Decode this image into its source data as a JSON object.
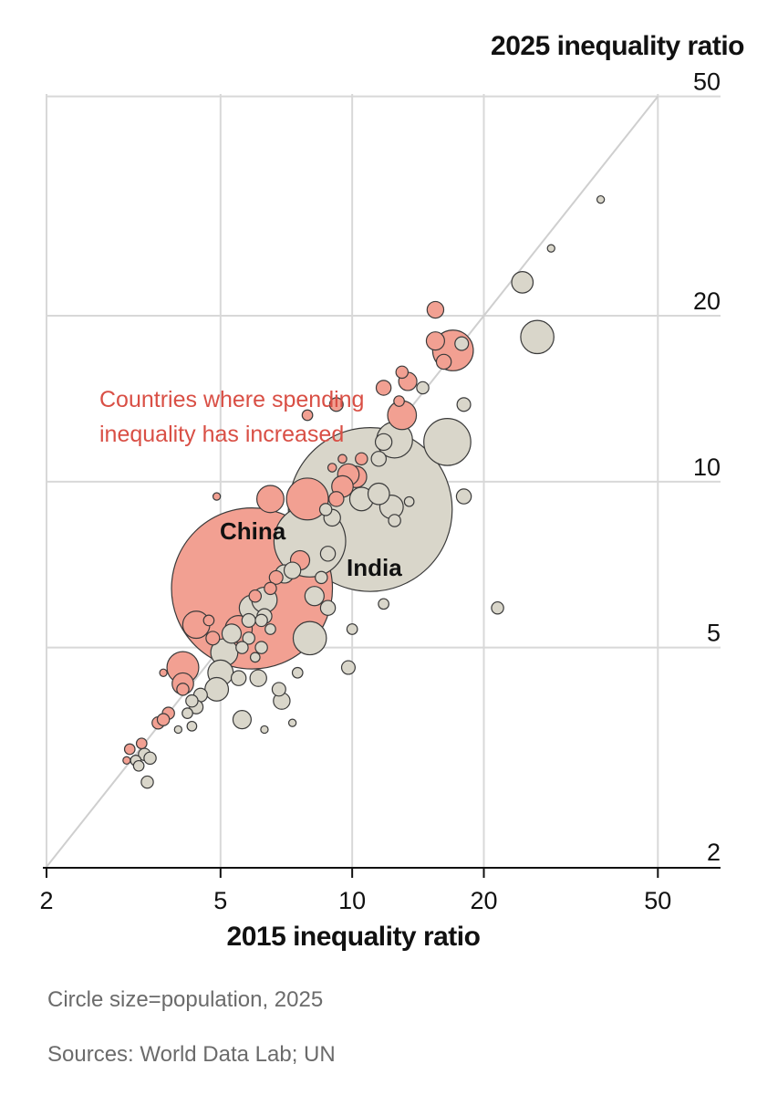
{
  "chart_data": {
    "type": "scatter",
    "xlabel": "2015 inequality ratio",
    "ylabel": "2025 inequality ratio",
    "x_scale": "log",
    "y_scale": "log",
    "xlim": [
      2,
      60
    ],
    "ylim": [
      2,
      50
    ],
    "x_ticks": [
      2,
      5,
      10,
      20,
      50
    ],
    "y_ticks": [
      2,
      5,
      10,
      20,
      50
    ],
    "grid": true,
    "reference_line": "y = x",
    "size_encoding": "population, 2025",
    "colors": {
      "increased": "#f2a092",
      "decreased": "#d9d6ca",
      "stroke": "#3a3a3a",
      "annotation": "#d94f45",
      "grid": "#d8d8d8",
      "diagonal": "#cfcfcf"
    },
    "annotations": {
      "increased_note": [
        "Countries where spending",
        "inequality has increased"
      ],
      "china": "China",
      "india": "India"
    },
    "points": [
      {
        "x": 5.9,
        "y": 6.4,
        "size": 1410,
        "group": "increased",
        "label": "China"
      },
      {
        "x": 11.0,
        "y": 8.9,
        "size": 1460,
        "group": "decreased",
        "label": "India"
      },
      {
        "x": 8.0,
        "y": 7.8,
        "size": 280,
        "group": "decreased"
      },
      {
        "x": 7.9,
        "y": 9.3,
        "size": 95,
        "group": "increased"
      },
      {
        "x": 6.5,
        "y": 9.3,
        "size": 40,
        "group": "increased"
      },
      {
        "x": 16.5,
        "y": 11.8,
        "size": 120,
        "group": "decreased"
      },
      {
        "x": 12.5,
        "y": 11.9,
        "size": 70,
        "group": "decreased"
      },
      {
        "x": 17.0,
        "y": 17.3,
        "size": 90,
        "group": "increased"
      },
      {
        "x": 26.5,
        "y": 18.3,
        "size": 60,
        "group": "decreased"
      },
      {
        "x": 13.0,
        "y": 13.2,
        "size": 45,
        "group": "increased"
      },
      {
        "x": 10.2,
        "y": 10.2,
        "size": 25,
        "group": "increased"
      },
      {
        "x": 12.3,
        "y": 9.0,
        "size": 30,
        "group": "decreased"
      },
      {
        "x": 8.0,
        "y": 5.2,
        "size": 60,
        "group": "decreased"
      },
      {
        "x": 5.5,
        "y": 5.4,
        "size": 40,
        "group": "increased"
      },
      {
        "x": 4.4,
        "y": 5.5,
        "size": 40,
        "group": "increased"
      },
      {
        "x": 4.1,
        "y": 4.6,
        "size": 55,
        "group": "increased"
      },
      {
        "x": 4.1,
        "y": 4.3,
        "size": 25,
        "group": "increased"
      },
      {
        "x": 5.1,
        "y": 4.9,
        "size": 40,
        "group": "decreased"
      },
      {
        "x": 5.9,
        "y": 5.9,
        "size": 35,
        "group": "decreased"
      },
      {
        "x": 4.9,
        "y": 4.2,
        "size": 30,
        "group": "decreased"
      },
      {
        "x": 5.0,
        "y": 4.5,
        "size": 35,
        "group": "decreased"
      },
      {
        "x": 24.5,
        "y": 23.0,
        "size": 25,
        "group": "decreased"
      },
      {
        "x": 15.5,
        "y": 20.5,
        "size": 15,
        "group": "increased"
      },
      {
        "x": 15.5,
        "y": 18.0,
        "size": 18,
        "group": "increased"
      },
      {
        "x": 16.2,
        "y": 16.5,
        "size": 12,
        "group": "increased"
      },
      {
        "x": 13.4,
        "y": 15.2,
        "size": 18,
        "group": "increased"
      },
      {
        "x": 11.8,
        "y": 14.8,
        "size": 12,
        "group": "increased"
      },
      {
        "x": 17.8,
        "y": 17.8,
        "size": 10,
        "group": "decreased"
      },
      {
        "x": 18.0,
        "y": 13.8,
        "size": 10,
        "group": "decreased"
      },
      {
        "x": 18.0,
        "y": 9.4,
        "size": 12,
        "group": "decreased"
      },
      {
        "x": 21.5,
        "y": 5.9,
        "size": 8,
        "group": "decreased"
      },
      {
        "x": 28.5,
        "y": 26.5,
        "size": 3,
        "group": "decreased"
      },
      {
        "x": 37.0,
        "y": 32.5,
        "size": 3,
        "group": "decreased"
      },
      {
        "x": 11.8,
        "y": 11.8,
        "size": 15,
        "group": "decreased"
      },
      {
        "x": 11.5,
        "y": 11.0,
        "size": 12,
        "group": "decreased"
      },
      {
        "x": 10.5,
        "y": 11.0,
        "size": 8,
        "group": "increased"
      },
      {
        "x": 12.8,
        "y": 14.0,
        "size": 6,
        "group": "increased"
      },
      {
        "x": 13.0,
        "y": 15.8,
        "size": 8,
        "group": "increased"
      },
      {
        "x": 14.5,
        "y": 14.8,
        "size": 8,
        "group": "decreased"
      },
      {
        "x": 9.2,
        "y": 13.8,
        "size": 10,
        "group": "increased"
      },
      {
        "x": 7.9,
        "y": 13.2,
        "size": 6,
        "group": "increased"
      },
      {
        "x": 9.8,
        "y": 10.3,
        "size": 25,
        "group": "increased"
      },
      {
        "x": 9.5,
        "y": 9.8,
        "size": 25,
        "group": "increased"
      },
      {
        "x": 9.2,
        "y": 9.3,
        "size": 12,
        "group": "increased"
      },
      {
        "x": 10.5,
        "y": 9.3,
        "size": 30,
        "group": "decreased"
      },
      {
        "x": 11.5,
        "y": 9.5,
        "size": 25,
        "group": "decreased"
      },
      {
        "x": 9.0,
        "y": 10.6,
        "size": 4,
        "group": "increased"
      },
      {
        "x": 9.5,
        "y": 11.0,
        "size": 4,
        "group": "increased"
      },
      {
        "x": 9.0,
        "y": 8.6,
        "size": 15,
        "group": "decreased"
      },
      {
        "x": 8.7,
        "y": 8.9,
        "size": 8,
        "group": "decreased"
      },
      {
        "x": 12.5,
        "y": 8.5,
        "size": 8,
        "group": "decreased"
      },
      {
        "x": 13.5,
        "y": 9.2,
        "size": 5,
        "group": "decreased"
      },
      {
        "x": 7.6,
        "y": 7.2,
        "size": 20,
        "group": "increased"
      },
      {
        "x": 7.3,
        "y": 6.9,
        "size": 15,
        "group": "decreased"
      },
      {
        "x": 7.0,
        "y": 6.8,
        "size": 18,
        "group": "decreased"
      },
      {
        "x": 8.5,
        "y": 6.7,
        "size": 8,
        "group": "decreased"
      },
      {
        "x": 8.8,
        "y": 7.4,
        "size": 12,
        "group": "decreased"
      },
      {
        "x": 6.7,
        "y": 6.7,
        "size": 10,
        "group": "increased"
      },
      {
        "x": 6.5,
        "y": 6.4,
        "size": 8,
        "group": "increased"
      },
      {
        "x": 8.2,
        "y": 6.2,
        "size": 20,
        "group": "decreased"
      },
      {
        "x": 8.8,
        "y": 5.9,
        "size": 12,
        "group": "decreased"
      },
      {
        "x": 6.3,
        "y": 6.1,
        "size": 35,
        "group": "decreased"
      },
      {
        "x": 6.3,
        "y": 5.7,
        "size": 12,
        "group": "decreased"
      },
      {
        "x": 6.0,
        "y": 6.2,
        "size": 8,
        "group": "increased"
      },
      {
        "x": 6.2,
        "y": 5.6,
        "size": 8,
        "group": "decreased"
      },
      {
        "x": 6.5,
        "y": 5.4,
        "size": 6,
        "group": "decreased"
      },
      {
        "x": 5.8,
        "y": 5.6,
        "size": 10,
        "group": "decreased"
      },
      {
        "x": 5.8,
        "y": 5.2,
        "size": 8,
        "group": "decreased"
      },
      {
        "x": 5.6,
        "y": 5.0,
        "size": 8,
        "group": "decreased"
      },
      {
        "x": 6.2,
        "y": 5.0,
        "size": 8,
        "group": "decreased"
      },
      {
        "x": 6.0,
        "y": 4.8,
        "size": 5,
        "group": "decreased"
      },
      {
        "x": 5.3,
        "y": 5.3,
        "size": 20,
        "group": "decreased"
      },
      {
        "x": 4.8,
        "y": 5.2,
        "size": 10,
        "group": "increased"
      },
      {
        "x": 4.7,
        "y": 5.6,
        "size": 6,
        "group": "increased"
      },
      {
        "x": 6.1,
        "y": 4.4,
        "size": 15,
        "group": "decreased"
      },
      {
        "x": 6.9,
        "y": 4.0,
        "size": 15,
        "group": "decreased"
      },
      {
        "x": 4.5,
        "y": 4.1,
        "size": 10,
        "group": "decreased"
      },
      {
        "x": 4.4,
        "y": 3.9,
        "size": 10,
        "group": "decreased"
      },
      {
        "x": 4.3,
        "y": 4.0,
        "size": 8,
        "group": "decreased"
      },
      {
        "x": 5.5,
        "y": 4.4,
        "size": 12,
        "group": "decreased"
      },
      {
        "x": 5.6,
        "y": 3.7,
        "size": 18,
        "group": "decreased"
      },
      {
        "x": 4.2,
        "y": 3.8,
        "size": 6,
        "group": "decreased"
      },
      {
        "x": 4.3,
        "y": 3.6,
        "size": 5,
        "group": "decreased"
      },
      {
        "x": 4.1,
        "y": 4.2,
        "size": 8,
        "group": "increased"
      },
      {
        "x": 3.8,
        "y": 3.8,
        "size": 8,
        "group": "increased"
      },
      {
        "x": 3.6,
        "y": 3.65,
        "size": 8,
        "group": "increased"
      },
      {
        "x": 3.7,
        "y": 3.7,
        "size": 8,
        "group": "increased"
      },
      {
        "x": 3.7,
        "y": 4.5,
        "size": 3,
        "group": "increased"
      },
      {
        "x": 4.0,
        "y": 3.55,
        "size": 3,
        "group": "decreased"
      },
      {
        "x": 6.3,
        "y": 3.55,
        "size": 3,
        "group": "decreased"
      },
      {
        "x": 7.3,
        "y": 3.65,
        "size": 3,
        "group": "decreased"
      },
      {
        "x": 3.3,
        "y": 3.35,
        "size": 6,
        "group": "increased"
      },
      {
        "x": 3.1,
        "y": 3.27,
        "size": 6,
        "group": "increased"
      },
      {
        "x": 3.05,
        "y": 3.12,
        "size": 3,
        "group": "increased"
      },
      {
        "x": 3.35,
        "y": 3.2,
        "size": 8,
        "group": "decreased"
      },
      {
        "x": 3.45,
        "y": 3.15,
        "size": 8,
        "group": "decreased"
      },
      {
        "x": 3.2,
        "y": 3.12,
        "size": 6,
        "group": "decreased"
      },
      {
        "x": 3.25,
        "y": 3.05,
        "size": 6,
        "group": "decreased"
      },
      {
        "x": 3.4,
        "y": 2.85,
        "size": 8,
        "group": "decreased"
      },
      {
        "x": 4.9,
        "y": 9.4,
        "size": 3,
        "group": "increased"
      },
      {
        "x": 9.8,
        "y": 4.6,
        "size": 10,
        "group": "decreased"
      },
      {
        "x": 10.0,
        "y": 5.4,
        "size": 6,
        "group": "decreased"
      },
      {
        "x": 11.8,
        "y": 6.0,
        "size": 6,
        "group": "decreased"
      },
      {
        "x": 7.5,
        "y": 4.5,
        "size": 6,
        "group": "decreased"
      },
      {
        "x": 6.8,
        "y": 4.2,
        "size": 10,
        "group": "decreased"
      }
    ]
  },
  "texts": {
    "y_title": "2025 inequality ratio",
    "x_title": "2015 inequality ratio",
    "note_size": "Circle size=population, 2025",
    "note_sources": "Sources: World Data Lab; UN"
  }
}
